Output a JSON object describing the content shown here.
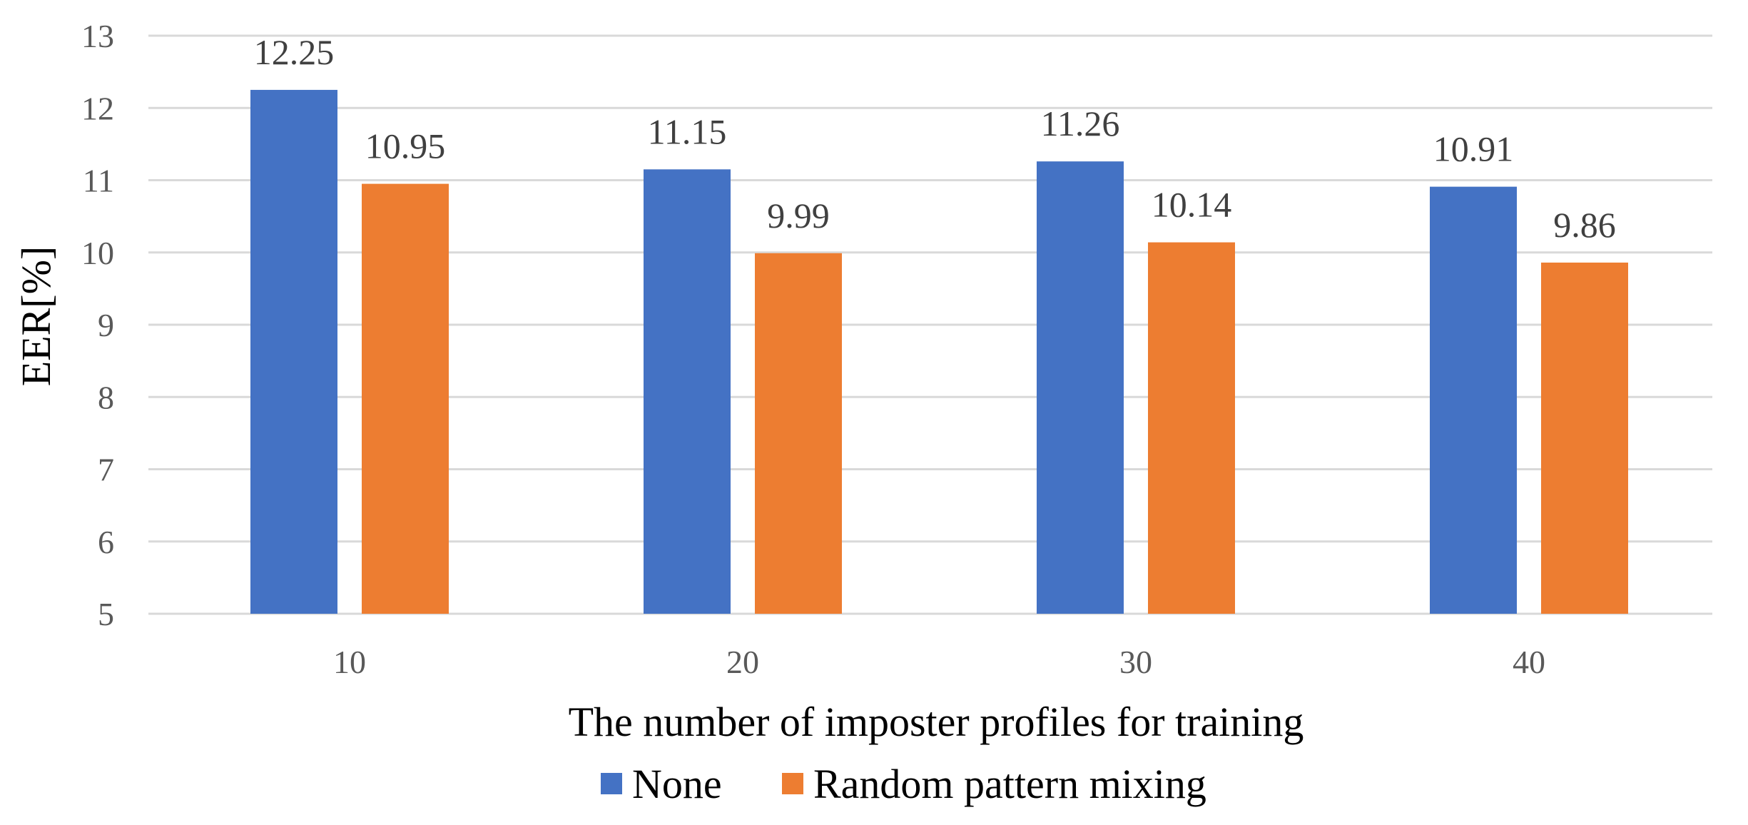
{
  "chart_data": {
    "type": "bar",
    "title": "",
    "xlabel": "The number of imposter profiles for training",
    "ylabel": "EER[%]",
    "ylim": [
      5,
      13
    ],
    "yticks": [
      "5",
      "6",
      "7",
      "8",
      "9",
      "10",
      "11",
      "12",
      "13"
    ],
    "grid": true,
    "legend_position": "bottom",
    "categories": [
      "10",
      "20",
      "30",
      "40"
    ],
    "series": [
      {
        "name": "None",
        "color": "#4472c4",
        "values": [
          12.25,
          11.15,
          11.26,
          10.91
        ],
        "labels": [
          "12.25",
          "11.15",
          "11.26",
          "10.91"
        ]
      },
      {
        "name": "Random pattern mixing",
        "color": "#ed7d31",
        "values": [
          10.95,
          9.99,
          10.14,
          9.86
        ],
        "labels": [
          "10.95",
          "9.99",
          "10.14",
          "9.86"
        ]
      }
    ]
  }
}
